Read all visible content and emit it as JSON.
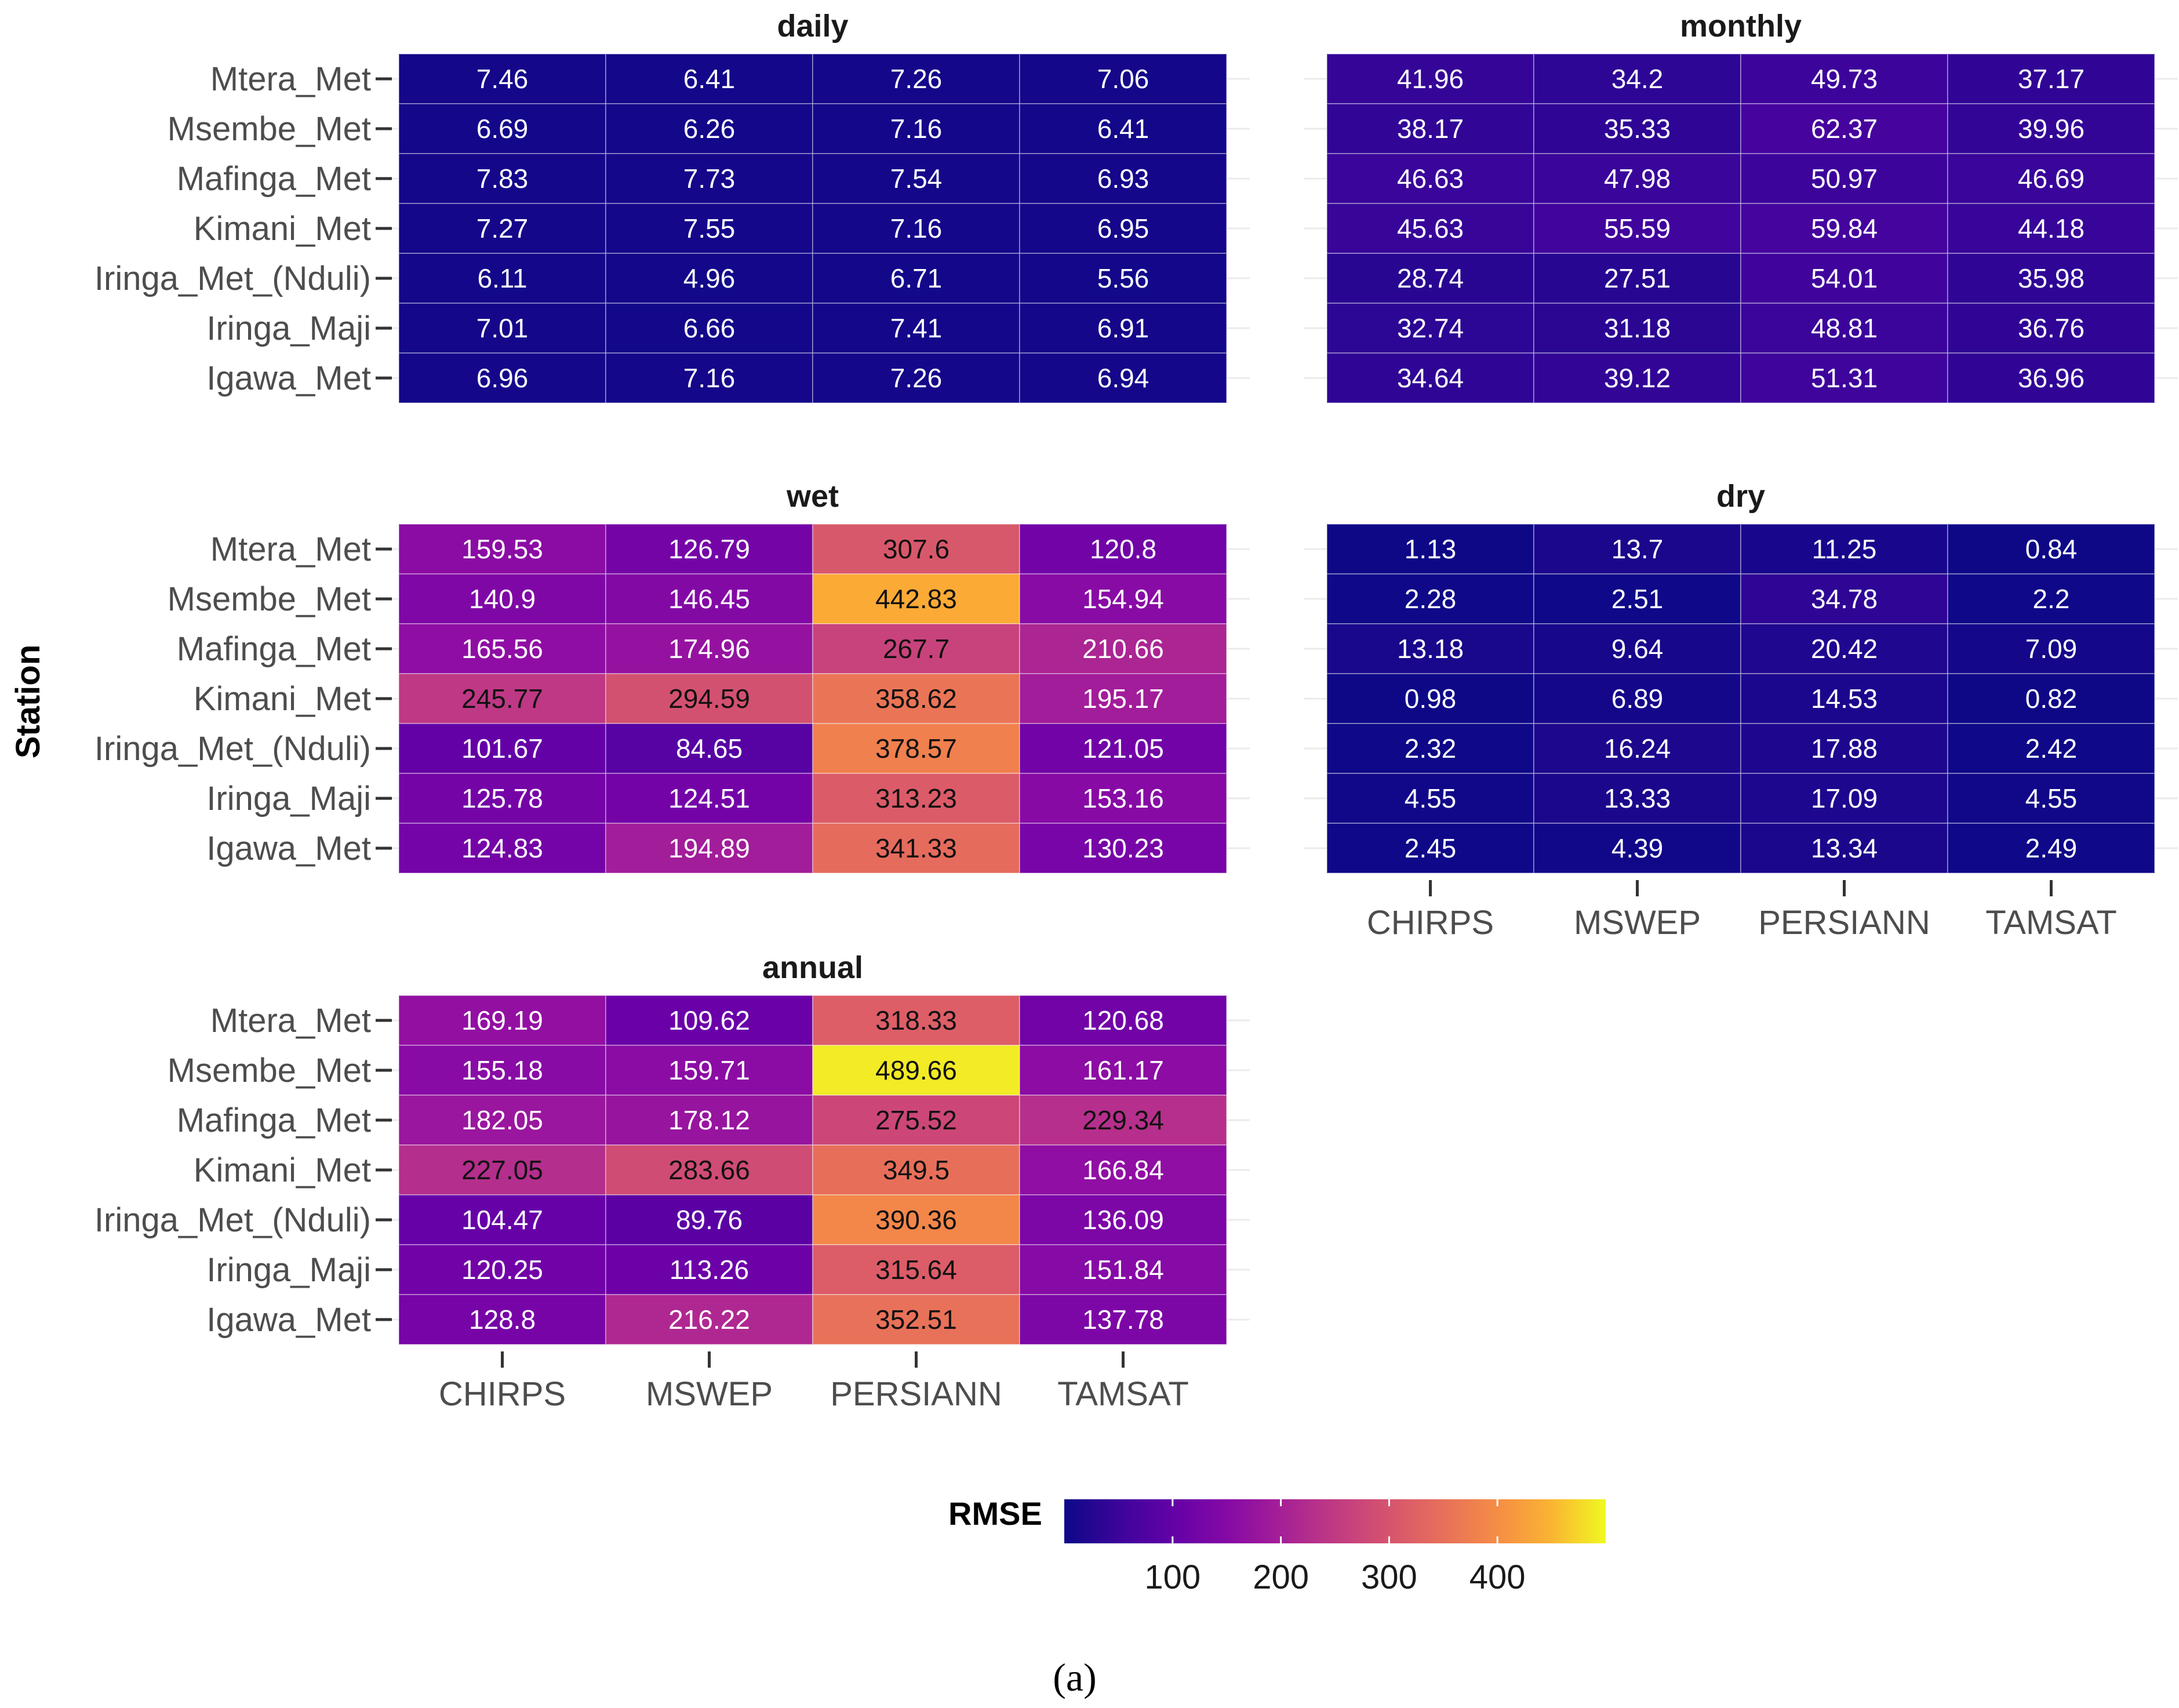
{
  "chart_data": {
    "type": "heatmap",
    "ylabel": "Station",
    "legend": {
      "title": "RMSE",
      "ticks": [
        100,
        200,
        300,
        400
      ],
      "placement": "bottom",
      "colormap": "plasma",
      "range": [
        0,
        500
      ]
    },
    "caption": "(a)",
    "x_categories": [
      "CHIRPS",
      "MSWEP",
      "PERSIANN",
      "TAMSAT"
    ],
    "y_categories": [
      "Mtera_Met",
      "Msembe_Met",
      "Mafinga_Met",
      "Kimani_Met",
      "Iringa_Met_(Nduli)",
      "Iringa_Maji",
      "Igawa_Met"
    ],
    "panels": [
      {
        "title": "daily",
        "values": [
          [
            "7.46",
            "6.41",
            "7.26",
            "7.06"
          ],
          [
            "6.69",
            "6.26",
            "7.16",
            "6.41"
          ],
          [
            "7.83",
            "7.73",
            "7.54",
            "6.93"
          ],
          [
            "7.27",
            "7.55",
            "7.16",
            "6.95"
          ],
          [
            "6.11",
            "4.96",
            "6.71",
            "5.56"
          ],
          [
            "7.01",
            "6.66",
            "7.41",
            "6.91"
          ],
          [
            "6.96",
            "7.16",
            "7.26",
            "6.94"
          ]
        ]
      },
      {
        "title": "monthly",
        "values": [
          [
            "41.96",
            "34.2",
            "49.73",
            "37.17"
          ],
          [
            "38.17",
            "35.33",
            "62.37",
            "39.96"
          ],
          [
            "46.63",
            "47.98",
            "50.97",
            "46.69"
          ],
          [
            "45.63",
            "55.59",
            "59.84",
            "44.18"
          ],
          [
            "28.74",
            "27.51",
            "54.01",
            "35.98"
          ],
          [
            "32.74",
            "31.18",
            "48.81",
            "36.76"
          ],
          [
            "34.64",
            "39.12",
            "51.31",
            "36.96"
          ]
        ]
      },
      {
        "title": "wet",
        "values": [
          [
            "159.53",
            "126.79",
            "307.6",
            "120.8"
          ],
          [
            "140.9",
            "146.45",
            "442.83",
            "154.94"
          ],
          [
            "165.56",
            "174.96",
            "267.7",
            "210.66"
          ],
          [
            "245.77",
            "294.59",
            "358.62",
            "195.17"
          ],
          [
            "101.67",
            "84.65",
            "378.57",
            "121.05"
          ],
          [
            "125.78",
            "124.51",
            "313.23",
            "153.16"
          ],
          [
            "124.83",
            "194.89",
            "341.33",
            "130.23"
          ]
        ]
      },
      {
        "title": "dry",
        "values": [
          [
            "1.13",
            "13.7",
            "11.25",
            "0.84"
          ],
          [
            "2.28",
            "2.51",
            "34.78",
            "2.2"
          ],
          [
            "13.18",
            "9.64",
            "20.42",
            "7.09"
          ],
          [
            "0.98",
            "6.89",
            "14.53",
            "0.82"
          ],
          [
            "2.32",
            "16.24",
            "17.88",
            "2.42"
          ],
          [
            "4.55",
            "13.33",
            "17.09",
            "4.55"
          ],
          [
            "2.45",
            "4.39",
            "13.34",
            "2.49"
          ]
        ]
      },
      {
        "title": "annual",
        "values": [
          [
            "169.19",
            "109.62",
            "318.33",
            "120.68"
          ],
          [
            "155.18",
            "159.71",
            "489.66",
            "161.17"
          ],
          [
            "182.05",
            "178.12",
            "275.52",
            "229.34"
          ],
          [
            "227.05",
            "283.66",
            "349.5",
            "166.84"
          ],
          [
            "104.47",
            "89.76",
            "390.36",
            "136.09"
          ],
          [
            "120.25",
            "113.26",
            "315.64",
            "151.84"
          ],
          [
            "128.8",
            "216.22",
            "352.51",
            "137.78"
          ]
        ]
      }
    ]
  }
}
